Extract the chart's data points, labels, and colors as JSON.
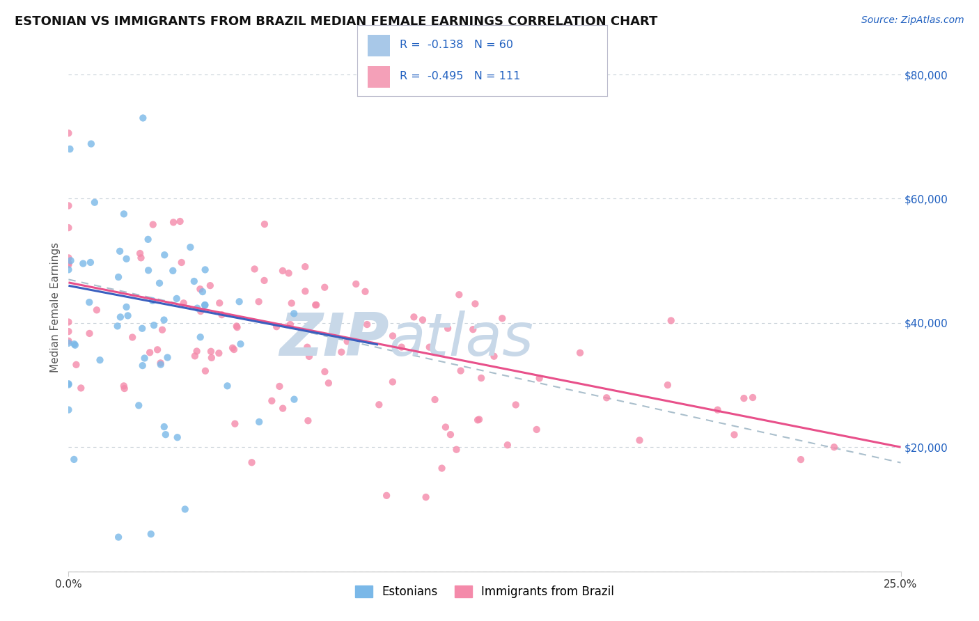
{
  "title": "ESTONIAN VS IMMIGRANTS FROM BRAZIL MEDIAN FEMALE EARNINGS CORRELATION CHART",
  "source_text": "Source: ZipAtlas.com",
  "ylabel": "Median Female Earnings",
  "xmin": 0.0,
  "xmax": 0.25,
  "ymin": 0,
  "ymax": 85000,
  "yticks": [
    0,
    20000,
    40000,
    60000,
    80000
  ],
  "ytick_labels": [
    "",
    "$20,000",
    "$40,000",
    "$60,000",
    "$80,000"
  ],
  "xtick_labels": [
    "0.0%",
    "25.0%"
  ],
  "estonian_scatter_color": "#7ab8e8",
  "brazil_scatter_color": "#f48aaa",
  "estonian_line_color": "#3a5fbf",
  "brazil_line_color": "#e8508a",
  "dashed_line_color": "#aabfcc",
  "legend_rect_est": "#a8c8e8",
  "legend_rect_bra": "#f4a0b8",
  "legend_text_color": "#2060c0",
  "watermark_zip_color": "#c8d8e8",
  "watermark_atlas_color": "#c8d8e8",
  "grid_color": "#c8d0d8",
  "background_color": "#ffffff",
  "title_fontsize": 13,
  "axis_label_fontsize": 11,
  "tick_label_fontsize": 11,
  "tick_color": "#2060c0",
  "source_fontsize": 10,
  "source_color": "#2060c0",
  "R_estonian": -0.138,
  "N_estonian": 60,
  "R_brazil": -0.495,
  "N_brazil": 111,
  "est_line_x0": 0.0,
  "est_line_x1": 0.093,
  "est_line_y0": 46000,
  "est_line_y1": 36500,
  "bra_line_x0": 0.0,
  "bra_line_x1": 0.25,
  "bra_line_y0": 46500,
  "bra_line_y1": 20000,
  "dash_line_x0": 0.0,
  "dash_line_x1": 0.25,
  "dash_line_y0": 47000,
  "dash_line_y1": 17500
}
